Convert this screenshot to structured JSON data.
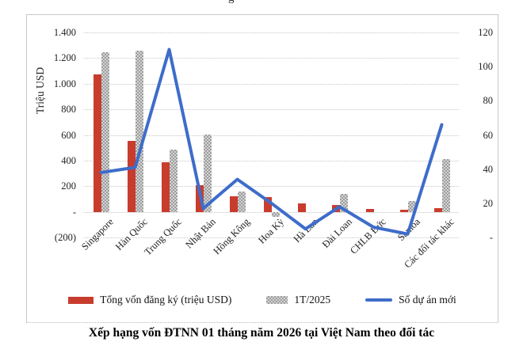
{
  "decor": {
    "top_fragment": "g"
  },
  "chart_data": {
    "type": "bar+line combo",
    "title": "Xếp hạng vốn ĐTNN 01 tháng năm 2026 tại Việt Nam theo đối tác",
    "categories": [
      "Singapore",
      "Hàn Quốc",
      "Trung Quốc",
      "Nhật Bản",
      "Hồng Kông",
      "Hoa Kỳ",
      "Hà Lan",
      "Đài Loan",
      "CHLB Đức",
      "Samoa",
      "Các đối tác khác"
    ],
    "series": [
      {
        "name": "Tổng vốn đăng ký (triệu  USD)",
        "type": "bar",
        "color": "#c0392b",
        "values": [
          1072,
          554,
          385,
          207,
          124,
          113,
          65,
          55,
          25,
          15,
          30
        ]
      },
      {
        "name": "1T/2025",
        "type": "bar",
        "color": "#ababab",
        "values": [
          1245,
          1258,
          487,
          605,
          160,
          -38,
          0,
          140,
          0,
          82,
          412
        ]
      },
      {
        "name": "Số dự án mới",
        "type": "line",
        "color": "#3e6dc9",
        "axis": "right",
        "values": [
          38,
          41,
          110,
          17,
          34,
          20,
          5,
          18,
          6,
          2,
          66
        ]
      }
    ],
    "left_axis": {
      "title": "Triệu USD",
      "min": -200,
      "max": 1400,
      "ticks": [
        {
          "label": "1.400",
          "value": 1400
        },
        {
          "label": "1.200",
          "value": 1200
        },
        {
          "label": "1.000",
          "value": 1000
        },
        {
          "label": "800",
          "value": 800
        },
        {
          "label": "600",
          "value": 600
        },
        {
          "label": "400",
          "value": 400
        },
        {
          "label": "200",
          "value": 200
        },
        {
          "label": "-",
          "value": 0
        },
        {
          "label": "(200)",
          "value": -200
        }
      ]
    },
    "right_axis": {
      "min": 0,
      "max": 120,
      "ticks": [
        {
          "label": "120",
          "value": 120
        },
        {
          "label": "100",
          "value": 100
        },
        {
          "label": "80",
          "value": 80
        },
        {
          "label": "60",
          "value": 60
        },
        {
          "label": "40",
          "value": 40
        },
        {
          "label": "20",
          "value": 20
        },
        {
          "label": "-",
          "value": 0
        }
      ]
    },
    "grid": true,
    "legend_position": "bottom"
  }
}
